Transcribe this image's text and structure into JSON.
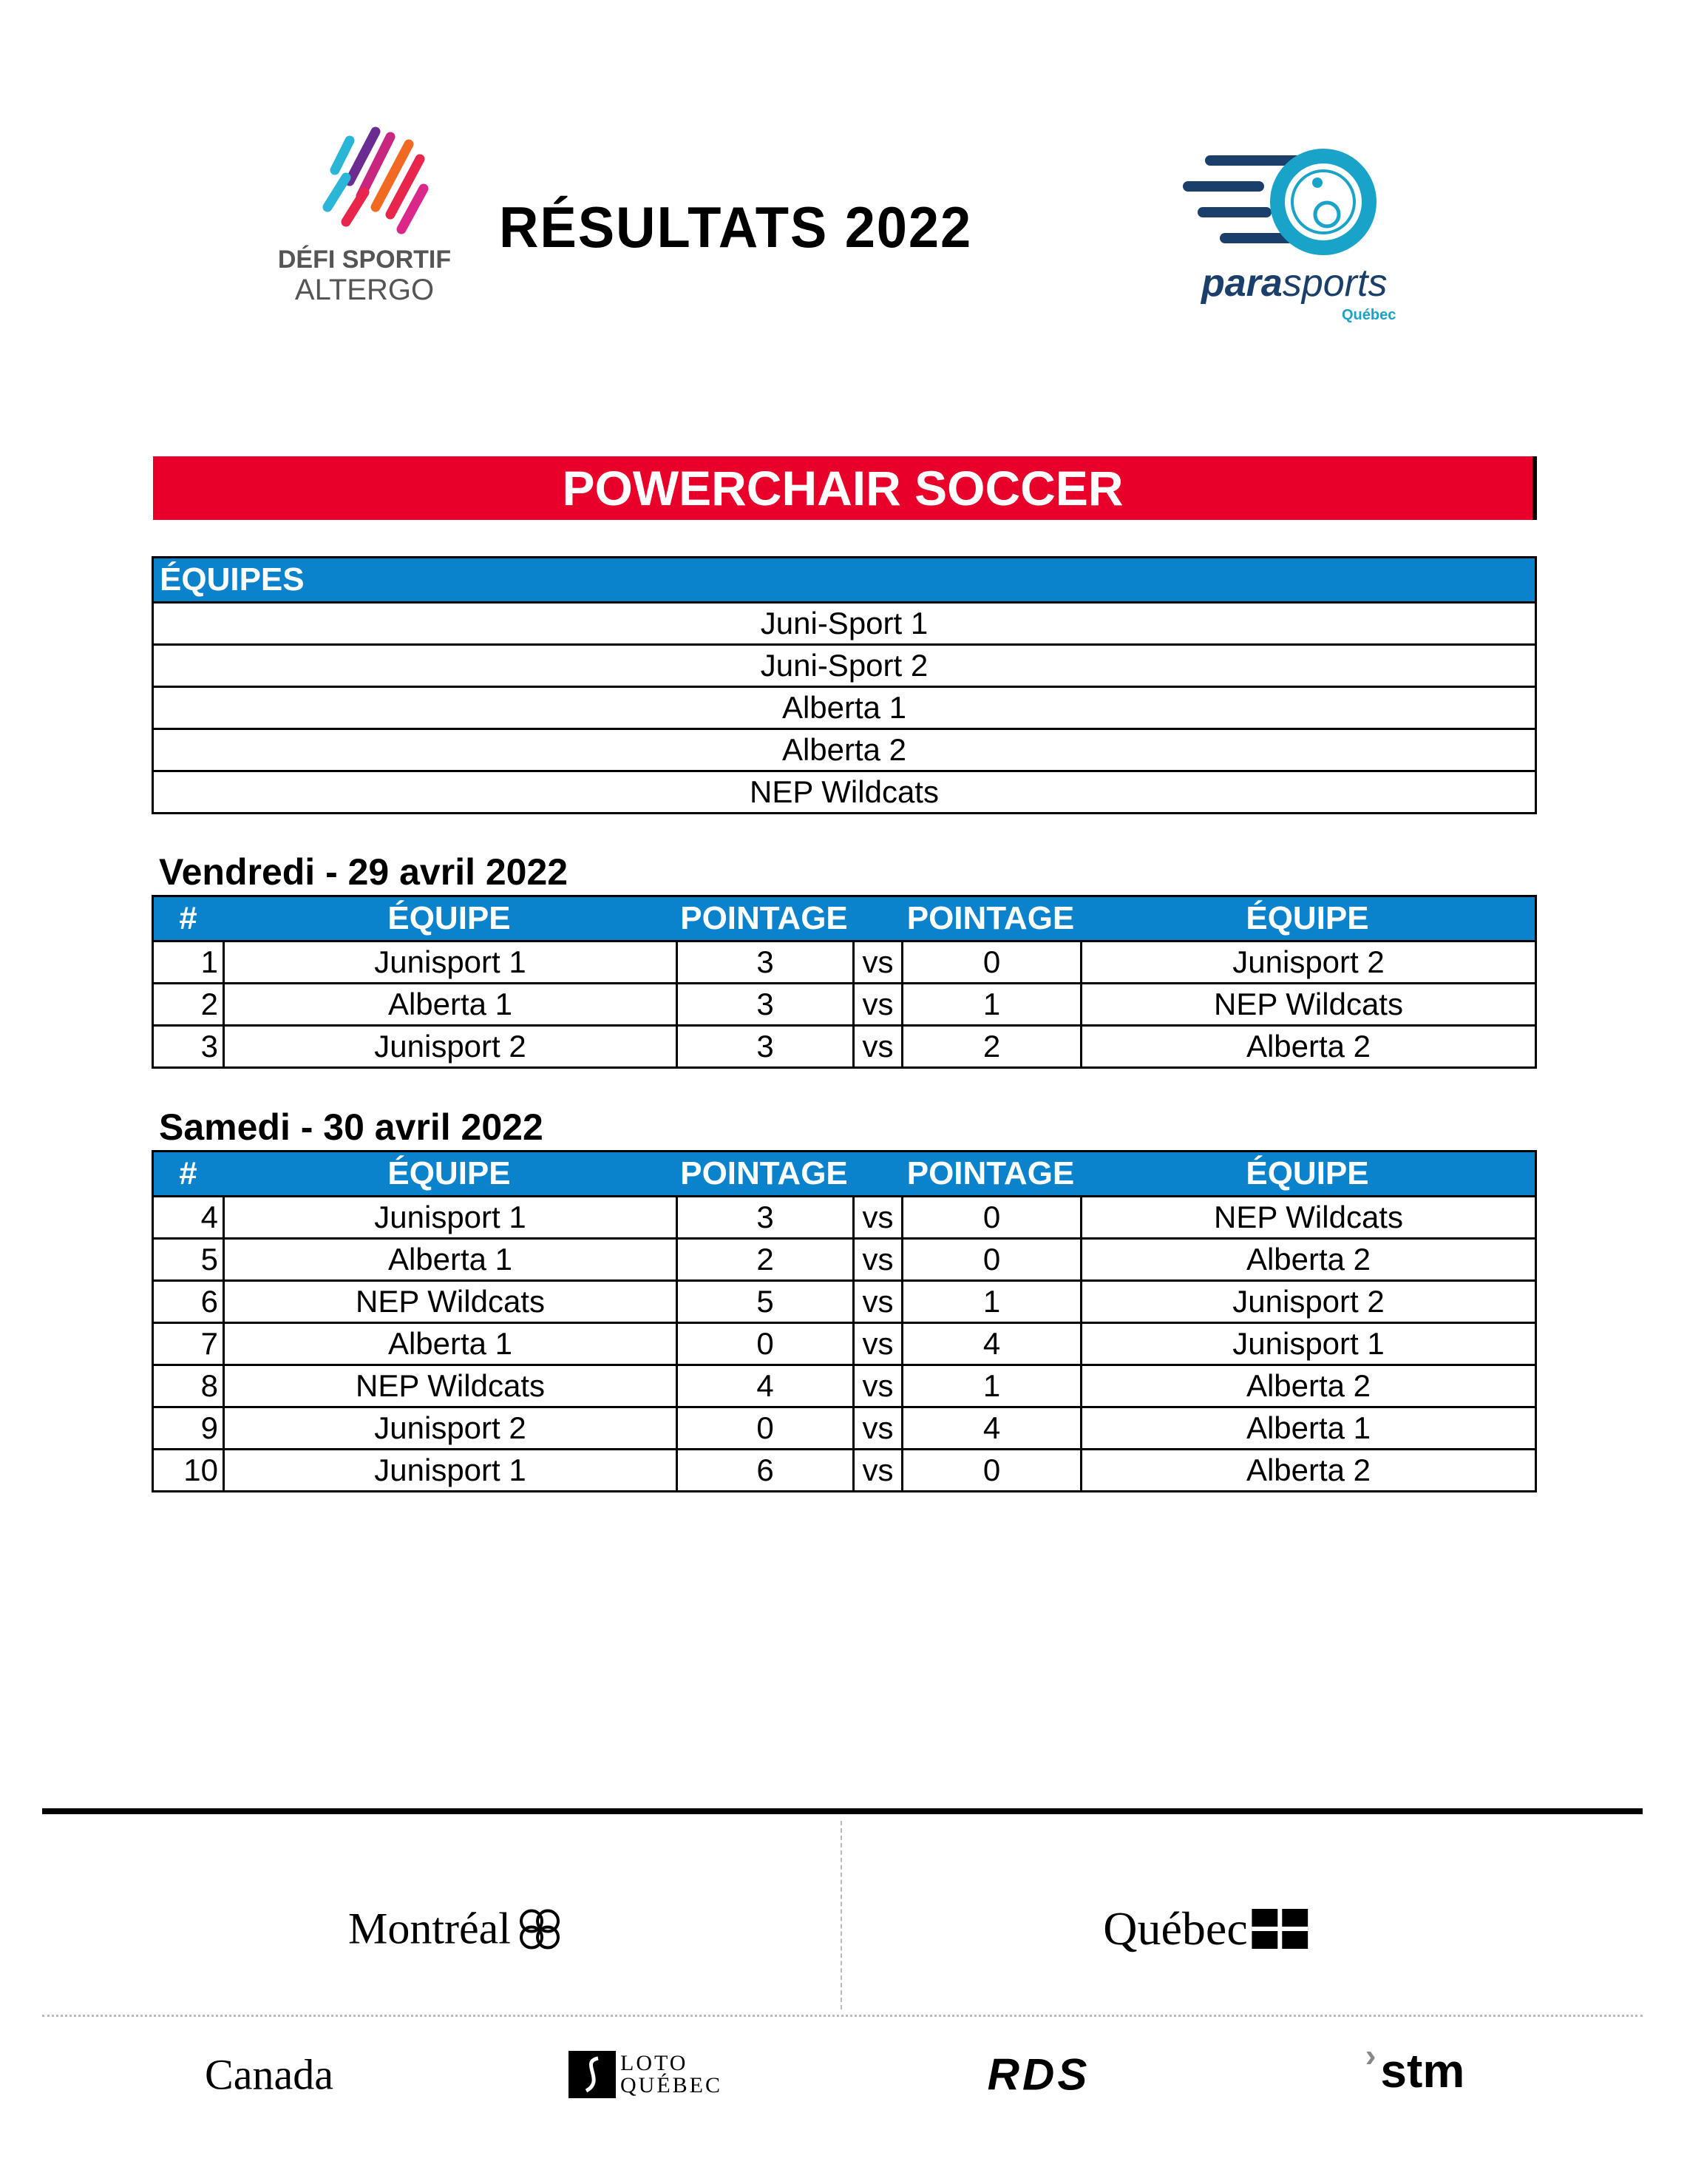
{
  "header": {
    "title": "RÉSULTATS 2022",
    "logo_left": [
      "DÉFI SPORTIF",
      "ALTERGO"
    ],
    "logo_right": {
      "main_a": "para",
      "main_b": "sports",
      "sub": "Québec"
    }
  },
  "banner": "POWERCHAIR SOCCER",
  "colors": {
    "banner": "#e8002a",
    "table_header": "#0a82cc",
    "parasports_dark": "#1b3f6b",
    "parasports_light": "#1aa3c8"
  },
  "teams": {
    "header": "ÉQUIPES",
    "items": [
      "Juni-Sport 1",
      "Juni-Sport 2",
      "Alberta 1",
      "Alberta 2",
      "NEP Wildcats"
    ]
  },
  "columns": [
    "#",
    "ÉQUIPE",
    "POINTAGE",
    "POINTAGE",
    "ÉQUIPE"
  ],
  "days": [
    {
      "label": "Vendredi - 29 avril 2022",
      "matches": [
        {
          "n": "1",
          "team1": "Junisport 1",
          "s1": "3",
          "vs": "vs",
          "s2": "0",
          "team2": "Junisport 2"
        },
        {
          "n": "2",
          "team1": "Alberta 1",
          "s1": "3",
          "vs": "vs",
          "s2": "1",
          "team2": "NEP Wildcats"
        },
        {
          "n": "3",
          "team1": "Junisport 2",
          "s1": "3",
          "vs": "vs",
          "s2": "2",
          "team2": "Alberta 2"
        }
      ]
    },
    {
      "label": "Samedi - 30 avril 2022",
      "matches": [
        {
          "n": "4",
          "team1": "Junisport 1",
          "s1": "3",
          "vs": "vs",
          "s2": "0",
          "team2": "NEP Wildcats"
        },
        {
          "n": "5",
          "team1": "Alberta 1",
          "s1": "2",
          "vs": "vs",
          "s2": "0",
          "team2": "Alberta 2"
        },
        {
          "n": "6",
          "team1": "NEP Wildcats",
          "s1": "5",
          "vs": "vs",
          "s2": "1",
          "team2": "Junisport 2"
        },
        {
          "n": "7",
          "team1": "Alberta 1",
          "s1": "0",
          "vs": "vs",
          "s2": "4",
          "team2": "Junisport 1"
        },
        {
          "n": "8",
          "team1": "NEP Wildcats",
          "s1": "4",
          "vs": "vs",
          "s2": "1",
          "team2": "Alberta 2"
        },
        {
          "n": "9",
          "team1": "Junisport 2",
          "s1": "0",
          "vs": "vs",
          "s2": "4",
          "team2": "Alberta 1"
        },
        {
          "n": "10",
          "team1": "Junisport 1",
          "s1": "6",
          "vs": "vs",
          "s2": "0",
          "team2": "Alberta 2"
        }
      ]
    }
  ],
  "sponsors": {
    "montreal": "Montréal",
    "quebec": "Québec",
    "canada": "Canada",
    "loto": [
      "LOTO",
      "QUÉBEC"
    ],
    "rds": "RDS",
    "stm": "stm"
  }
}
